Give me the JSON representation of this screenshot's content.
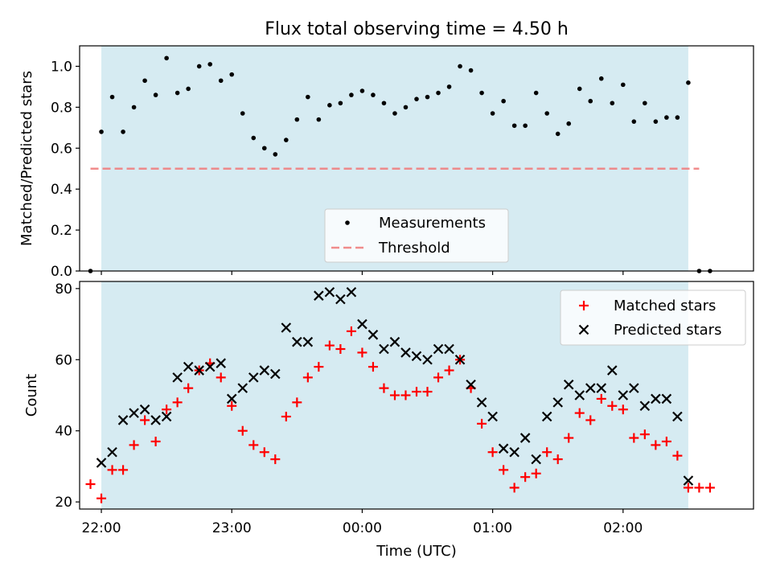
{
  "chart_data": [
    {
      "type": "scatter",
      "title": "Flux total observing time = 4.50 h",
      "xlabel": "",
      "ylabel": "Matched/Predicted stars",
      "x_unit": "time_utc",
      "xlim": [
        "21:50",
        "03:00"
      ],
      "ylim": [
        0.0,
        1.1
      ],
      "xticks": [
        "22:00",
        "23:00",
        "00:00",
        "01:00",
        "02:00"
      ],
      "yticks": [
        "0.0",
        "0.2",
        "0.4",
        "0.6",
        "0.8",
        "1.0"
      ],
      "observing_window": {
        "start": "22:00",
        "end": "02:30",
        "color": "#add8e6"
      },
      "threshold": {
        "name": "Threshold",
        "value": 0.5,
        "color": "#f08080",
        "x_range": [
          "21:55",
          "02:35"
        ]
      },
      "legend": {
        "placement": "lower-center",
        "entries": [
          "Measurements",
          "Threshold"
        ]
      },
      "series": [
        {
          "name": "Measurements",
          "color": "#000000",
          "x": [
            "21:55",
            "22:00",
            "22:05",
            "22:10",
            "22:15",
            "22:20",
            "22:25",
            "22:30",
            "22:35",
            "22:40",
            "22:45",
            "22:50",
            "22:55",
            "23:00",
            "23:05",
            "23:10",
            "23:15",
            "23:20",
            "23:25",
            "23:30",
            "23:35",
            "23:40",
            "23:45",
            "23:50",
            "23:55",
            "00:00",
            "00:05",
            "00:10",
            "00:15",
            "00:20",
            "00:25",
            "00:30",
            "00:35",
            "00:40",
            "00:45",
            "00:50",
            "00:55",
            "01:00",
            "01:05",
            "01:10",
            "01:15",
            "01:20",
            "01:25",
            "01:30",
            "01:35",
            "01:40",
            "01:45",
            "01:50",
            "01:55",
            "02:00",
            "02:05",
            "02:10",
            "02:15",
            "02:20",
            "02:25",
            "02:30",
            "02:35",
            "02:40"
          ],
          "y": [
            0.0,
            0.68,
            0.85,
            0.68,
            0.8,
            0.93,
            0.86,
            1.04,
            0.87,
            0.89,
            1.0,
            1.01,
            0.93,
            0.96,
            0.77,
            0.65,
            0.6,
            0.57,
            0.64,
            0.74,
            0.85,
            0.74,
            0.81,
            0.82,
            0.86,
            0.88,
            0.86,
            0.82,
            0.77,
            0.8,
            0.84,
            0.85,
            0.87,
            0.9,
            1.0,
            0.98,
            0.87,
            0.77,
            0.83,
            0.71,
            0.71,
            0.87,
            0.77,
            0.67,
            0.72,
            0.89,
            0.83,
            0.94,
            0.82,
            0.91,
            0.73,
            0.82,
            0.73,
            0.75,
            0.75,
            0.92,
            0.0,
            0.0
          ]
        }
      ]
    },
    {
      "type": "scatter",
      "title": "",
      "xlabel": "Time (UTC)",
      "ylabel": "Count",
      "x_unit": "time_utc",
      "xlim": [
        "21:50",
        "03:00"
      ],
      "ylim": [
        18,
        82
      ],
      "xticks": [
        "22:00",
        "23:00",
        "00:00",
        "01:00",
        "02:00"
      ],
      "yticks": [
        "20",
        "40",
        "60",
        "80"
      ],
      "observing_window": {
        "start": "22:00",
        "end": "02:30",
        "color": "#add8e6"
      },
      "legend": {
        "placement": "top-right",
        "entries": [
          "Matched stars",
          "Predicted stars"
        ]
      },
      "series": [
        {
          "name": "Matched stars",
          "marker": "plus",
          "color": "#ff0000",
          "x": [
            "21:55",
            "22:00",
            "22:05",
            "22:10",
            "22:15",
            "22:20",
            "22:25",
            "22:30",
            "22:35",
            "22:40",
            "22:45",
            "22:50",
            "22:55",
            "23:00",
            "23:05",
            "23:10",
            "23:15",
            "23:20",
            "23:25",
            "23:30",
            "23:35",
            "23:40",
            "23:45",
            "23:50",
            "23:55",
            "00:00",
            "00:05",
            "00:10",
            "00:15",
            "00:20",
            "00:25",
            "00:30",
            "00:35",
            "00:40",
            "00:45",
            "00:50",
            "00:55",
            "01:00",
            "01:05",
            "01:10",
            "01:15",
            "01:20",
            "01:25",
            "01:30",
            "01:35",
            "01:40",
            "01:45",
            "01:50",
            "01:55",
            "02:00",
            "02:05",
            "02:10",
            "02:15",
            "02:20",
            "02:25",
            "02:30",
            "02:35",
            "02:40"
          ],
          "y": [
            25,
            21,
            29,
            29,
            36,
            43,
            37,
            46,
            48,
            52,
            57,
            59,
            55,
            47,
            40,
            36,
            34,
            32,
            44,
            48,
            55,
            58,
            64,
            63,
            68,
            62,
            58,
            52,
            50,
            50,
            51,
            51,
            55,
            57,
            60,
            52,
            42,
            34,
            29,
            24,
            27,
            28,
            34,
            32,
            38,
            45,
            43,
            49,
            47,
            46,
            38,
            39,
            36,
            37,
            33,
            24,
            24,
            24
          ]
        },
        {
          "name": "Predicted stars",
          "marker": "x",
          "color": "#000000",
          "x": [
            "22:00",
            "22:05",
            "22:10",
            "22:15",
            "22:20",
            "22:25",
            "22:30",
            "22:35",
            "22:40",
            "22:45",
            "22:50",
            "22:55",
            "23:00",
            "23:05",
            "23:10",
            "23:15",
            "23:20",
            "23:25",
            "23:30",
            "23:35",
            "23:40",
            "23:45",
            "23:50",
            "23:55",
            "00:00",
            "00:05",
            "00:10",
            "00:15",
            "00:20",
            "00:25",
            "00:30",
            "00:35",
            "00:40",
            "00:45",
            "00:50",
            "00:55",
            "01:00",
            "01:05",
            "01:10",
            "01:15",
            "01:20",
            "01:25",
            "01:30",
            "01:35",
            "01:40",
            "01:45",
            "01:50",
            "01:55",
            "02:00",
            "02:05",
            "02:10",
            "02:15",
            "02:20",
            "02:25",
            "02:30"
          ],
          "y": [
            31,
            34,
            43,
            45,
            46,
            43,
            44,
            55,
            58,
            57,
            58,
            59,
            49,
            52,
            55,
            57,
            56,
            69,
            65,
            65,
            78,
            79,
            77,
            79,
            70,
            67,
            63,
            65,
            62,
            61,
            60,
            63,
            63,
            60,
            53,
            48,
            44,
            35,
            34,
            38,
            32,
            44,
            48,
            53,
            50,
            52,
            52,
            57,
            50,
            52,
            47,
            49,
            49,
            44,
            26
          ]
        }
      ]
    }
  ]
}
